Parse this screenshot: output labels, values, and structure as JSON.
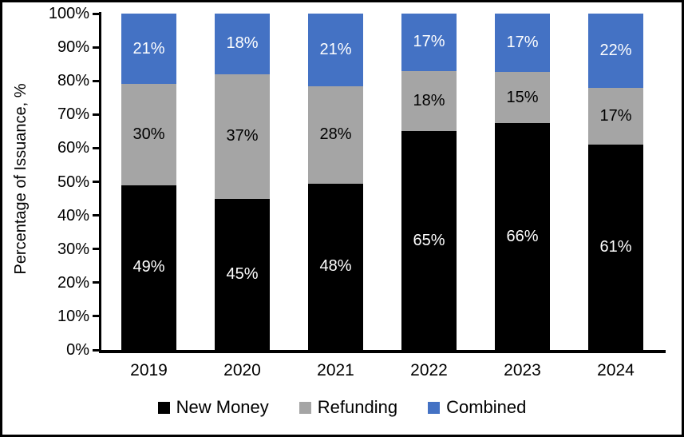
{
  "frame": {
    "background": "#ffffff",
    "border_color": "#000000"
  },
  "chart_data": {
    "type": "bar",
    "stacked": true,
    "orientation": "vertical",
    "title": "",
    "xlabel": "",
    "ylabel": "Percentage of Issuance, %",
    "ylim": [
      0,
      100
    ],
    "y_tick_step": 10,
    "y_tick_labels": [
      "0%",
      "10%",
      "20%",
      "30%",
      "40%",
      "50%",
      "60%",
      "70%",
      "80%",
      "90%",
      "100%"
    ],
    "grid": false,
    "categories": [
      "2019",
      "2020",
      "2021",
      "2022",
      "2023",
      "2024"
    ],
    "series": [
      {
        "name": "New Money",
        "color": "#000000",
        "label_color": "#ffffff",
        "values": [
          49,
          45,
          48,
          65,
          66,
          61
        ],
        "labels": [
          "49%",
          "45%",
          "48%",
          "65%",
          "66%",
          "61%"
        ]
      },
      {
        "name": "Refunding",
        "color": "#A5A5A5",
        "label_color": "#000000",
        "values": [
          30,
          37,
          28,
          18,
          15,
          17
        ],
        "labels": [
          "30%",
          "37%",
          "28%",
          "18%",
          "15%",
          "17%"
        ]
      },
      {
        "name": "Combined",
        "color": "#4472C4",
        "label_color": "#ffffff",
        "values": [
          21,
          18,
          21,
          17,
          17,
          22
        ],
        "labels": [
          "21%",
          "18%",
          "21%",
          "17%",
          "17%",
          "22%"
        ]
      }
    ],
    "legend": {
      "position": "bottom",
      "items": [
        "New Money",
        "Refunding",
        "Combined"
      ]
    }
  }
}
